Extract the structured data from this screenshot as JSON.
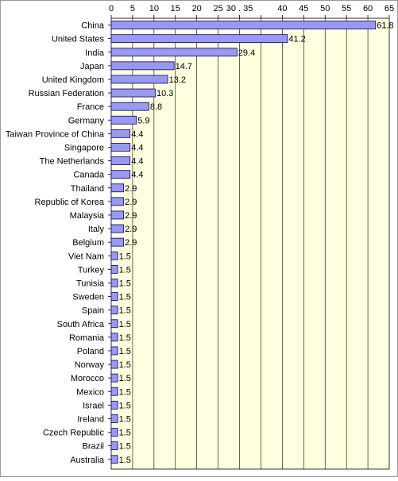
{
  "chart_data": {
    "type": "bar",
    "orientation": "horizontal",
    "categories": [
      "China",
      "United States",
      "India",
      "Japan",
      "United Kingdom",
      "Russian Federation",
      "France",
      "Germany",
      "Taiwan Province of China",
      "Singapore",
      "The Netherlands",
      "Canada",
      "Thailand",
      "Republic of Korea",
      "Malaysia",
      "Italy",
      "Belgium",
      "Viet Nam",
      "Turkey",
      "Tunisia",
      "Sweden",
      "Spain",
      "South Africa",
      "Romania",
      "Poland",
      "Norway",
      "Morocco",
      "Mexico",
      "Israel",
      "Ireland",
      "Czech Republic",
      "Brazil",
      "Australia"
    ],
    "values": [
      61.8,
      41.2,
      29.4,
      14.7,
      13.2,
      10.3,
      8.8,
      5.9,
      4.4,
      4.4,
      4.4,
      4.4,
      2.9,
      2.9,
      2.9,
      2.9,
      2.9,
      1.5,
      1.5,
      1.5,
      1.5,
      1.5,
      1.5,
      1.5,
      1.5,
      1.5,
      1.5,
      1.5,
      1.5,
      1.5,
      1.5,
      1.5,
      1.5
    ],
    "value_labels": [
      "61.8",
      "41.2",
      "29.4",
      "14.7",
      "13.2",
      "10.3",
      "8.8",
      "5.9",
      "4.4",
      "4.4",
      "4.4",
      "4.4",
      "2.9",
      "2.9",
      "2.9",
      "2.9",
      "2.9",
      "1.5",
      "1.5",
      "1.5",
      "1.5",
      "1.5",
      "1.5",
      "1.5",
      "1.5",
      "1.5",
      "1.5",
      "1.5",
      "1.5",
      "1.5",
      "1.5",
      "1.5",
      "1.5"
    ],
    "x_ticks": [
      0,
      5,
      10,
      15,
      20,
      25,
      30,
      35,
      40,
      45,
      50,
      55,
      60,
      65
    ],
    "x_tick_labels": [
      "0",
      "5",
      "10",
      "15",
      "20",
      "25",
      "30 . 35",
      "",
      "40",
      "45",
      "50",
      "55",
      "60",
      "65"
    ],
    "xlim": [
      0,
      65
    ],
    "title": "",
    "xlabel": "",
    "ylabel": "",
    "grid": true,
    "legend": "none",
    "colors": {
      "bar_fill": "#9999f0",
      "bar_stroke": "#000080",
      "plot_background": "#ffffe0",
      "gridline": "#000000",
      "outer_border": "#999999"
    }
  }
}
